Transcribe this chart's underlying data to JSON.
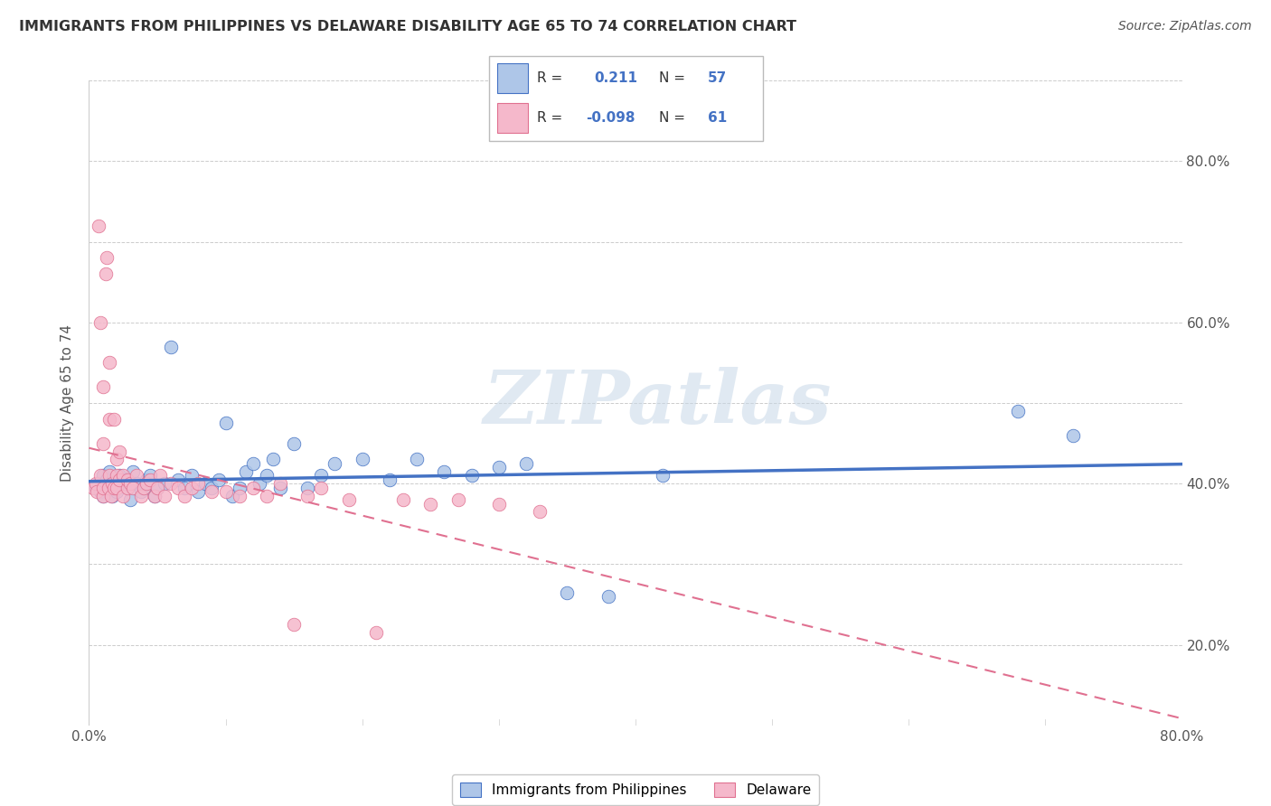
{
  "title": "IMMIGRANTS FROM PHILIPPINES VS DELAWARE DISABILITY AGE 65 TO 74 CORRELATION CHART",
  "source": "Source: ZipAtlas.com",
  "ylabel": "Disability Age 65 to 74",
  "legend_label1": "Immigrants from Philippines",
  "legend_label2": "Delaware",
  "r1": 0.211,
  "n1": 57,
  "r2": -0.098,
  "n2": 61,
  "color1": "#aec6e8",
  "color2": "#f5b8cb",
  "line_color1": "#4472c4",
  "line_color2": "#e07090",
  "xlim": [
    0.0,
    0.8
  ],
  "ylim": [
    0.0,
    0.8
  ],
  "watermark": "ZIPatlas",
  "scatter1_x": [
    0.005,
    0.007,
    0.008,
    0.01,
    0.01,
    0.012,
    0.013,
    0.015,
    0.015,
    0.017,
    0.02,
    0.022,
    0.025,
    0.028,
    0.03,
    0.032,
    0.035,
    0.038,
    0.04,
    0.042,
    0.045,
    0.048,
    0.05,
    0.055,
    0.06,
    0.065,
    0.07,
    0.075,
    0.08,
    0.085,
    0.09,
    0.095,
    0.1,
    0.105,
    0.11,
    0.115,
    0.12,
    0.125,
    0.13,
    0.135,
    0.14,
    0.15,
    0.16,
    0.17,
    0.18,
    0.2,
    0.22,
    0.24,
    0.26,
    0.28,
    0.3,
    0.32,
    0.35,
    0.38,
    0.42,
    0.68,
    0.72
  ],
  "scatter1_y": [
    0.295,
    0.3,
    0.29,
    0.285,
    0.31,
    0.295,
    0.305,
    0.3,
    0.315,
    0.285,
    0.29,
    0.31,
    0.305,
    0.295,
    0.28,
    0.315,
    0.3,
    0.29,
    0.295,
    0.305,
    0.31,
    0.285,
    0.295,
    0.3,
    0.47,
    0.305,
    0.295,
    0.31,
    0.29,
    0.3,
    0.295,
    0.305,
    0.375,
    0.285,
    0.295,
    0.315,
    0.325,
    0.3,
    0.31,
    0.33,
    0.295,
    0.35,
    0.295,
    0.31,
    0.325,
    0.33,
    0.305,
    0.33,
    0.315,
    0.31,
    0.32,
    0.325,
    0.165,
    0.16,
    0.31,
    0.39,
    0.36
  ],
  "scatter2_x": [
    0.003,
    0.005,
    0.006,
    0.007,
    0.008,
    0.008,
    0.01,
    0.01,
    0.01,
    0.01,
    0.012,
    0.013,
    0.014,
    0.015,
    0.015,
    0.015,
    0.016,
    0.017,
    0.018,
    0.018,
    0.02,
    0.02,
    0.02,
    0.022,
    0.022,
    0.025,
    0.025,
    0.028,
    0.028,
    0.03,
    0.032,
    0.035,
    0.038,
    0.04,
    0.042,
    0.045,
    0.048,
    0.05,
    0.052,
    0.055,
    0.06,
    0.065,
    0.07,
    0.075,
    0.08,
    0.09,
    0.1,
    0.11,
    0.12,
    0.13,
    0.14,
    0.15,
    0.16,
    0.17,
    0.19,
    0.21,
    0.23,
    0.25,
    0.27,
    0.3,
    0.33
  ],
  "scatter2_y": [
    0.295,
    0.3,
    0.29,
    0.62,
    0.31,
    0.5,
    0.285,
    0.295,
    0.35,
    0.42,
    0.56,
    0.58,
    0.295,
    0.31,
    0.38,
    0.45,
    0.285,
    0.3,
    0.295,
    0.38,
    0.31,
    0.33,
    0.295,
    0.305,
    0.34,
    0.285,
    0.31,
    0.295,
    0.305,
    0.3,
    0.295,
    0.31,
    0.285,
    0.295,
    0.3,
    0.305,
    0.285,
    0.295,
    0.31,
    0.285,
    0.3,
    0.295,
    0.285,
    0.295,
    0.3,
    0.29,
    0.29,
    0.285,
    0.295,
    0.285,
    0.3,
    0.125,
    0.285,
    0.295,
    0.28,
    0.115,
    0.28,
    0.275,
    0.28,
    0.275,
    0.265
  ]
}
